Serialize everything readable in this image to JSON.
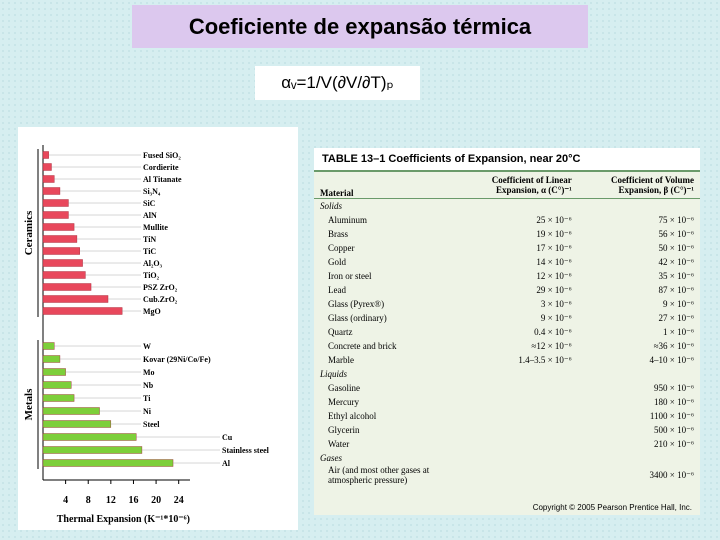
{
  "slide": {
    "title": "Coeficiente de expansão térmica",
    "formula": "αᵥ=1/V(∂V/∂T)ₚ"
  },
  "chart_data": {
    "type": "bar",
    "orientation": "horizontal",
    "x_label": "Thermal Expansion (K⁻¹*10⁻⁶)",
    "xlim": [
      0,
      26
    ],
    "xticks": [
      4,
      8,
      12,
      16,
      20,
      24
    ],
    "groups": [
      {
        "name": "Ceramics",
        "color": "#e8485c",
        "categories": [
          "Fused SiO₂",
          "Cordierite",
          "Al Titanate",
          "Si₃N₄",
          "SiC",
          "AlN",
          "Mullite",
          "TiN",
          "TiC",
          "Al₂O₃",
          "TiO₂",
          "PSZ ZrO₂",
          "Cub.ZrO₂",
          "MgO"
        ],
        "values": [
          1,
          1.5,
          2,
          3,
          4.5,
          4.5,
          5.5,
          6,
          6.5,
          7,
          7.5,
          8.5,
          11.5,
          14
        ]
      },
      {
        "name": "Metals",
        "color": "#7dcf3a",
        "categories": [
          "W",
          "Kovar (29Ni/Co/Fe)",
          "Mo",
          "Nb",
          "Ti",
          "Ni",
          "Steel",
          "Cu",
          "Stainless steel",
          "Al"
        ],
        "values": [
          2,
          3,
          4,
          5,
          5.5,
          10,
          12,
          16.5,
          17.5,
          23
        ]
      }
    ]
  },
  "table": {
    "title": "TABLE 13–1 Coefficients of Expansion, near 20°C",
    "headers": [
      "Material",
      "Coefficient of Linear Expansion, α (C°)⁻¹",
      "Coefficient of Volume Expansion, β (C°)⁻¹"
    ],
    "sections": [
      {
        "name": "Solids",
        "rows": [
          {
            "material": "Aluminum",
            "alpha": "25 × 10⁻⁶",
            "beta": "75 × 10⁻⁶"
          },
          {
            "material": "Brass",
            "alpha": "19 × 10⁻⁶",
            "beta": "56 × 10⁻⁶"
          },
          {
            "material": "Copper",
            "alpha": "17 × 10⁻⁶",
            "beta": "50 × 10⁻⁶"
          },
          {
            "material": "Gold",
            "alpha": "14 × 10⁻⁶",
            "beta": "42 × 10⁻⁶"
          },
          {
            "material": "Iron or steel",
            "alpha": "12 × 10⁻⁶",
            "beta": "35 × 10⁻⁶"
          },
          {
            "material": "Lead",
            "alpha": "29 × 10⁻⁶",
            "beta": "87 × 10⁻⁶"
          },
          {
            "material": "Glass (Pyrex®)",
            "alpha": "3 × 10⁻⁶",
            "beta": "9 × 10⁻⁶"
          },
          {
            "material": "Glass (ordinary)",
            "alpha": "9 × 10⁻⁶",
            "beta": "27 × 10⁻⁶"
          },
          {
            "material": "Quartz",
            "alpha": "0.4 × 10⁻⁶",
            "beta": "1 × 10⁻⁶"
          },
          {
            "material": "Concrete and brick",
            "alpha": "≈12 × 10⁻⁶",
            "beta": "≈36 × 10⁻⁶"
          },
          {
            "material": "Marble",
            "alpha": "1.4–3.5 × 10⁻⁶",
            "beta": "4–10 × 10⁻⁶"
          }
        ]
      },
      {
        "name": "Liquids",
        "rows": [
          {
            "material": "Gasoline",
            "beta": "950 × 10⁻⁶"
          },
          {
            "material": "Mercury",
            "beta": "180 × 10⁻⁶"
          },
          {
            "material": "Ethyl alcohol",
            "beta": "1100 × 10⁻⁶"
          },
          {
            "material": "Glycerin",
            "beta": "500 × 10⁻⁶"
          },
          {
            "material": "Water",
            "beta": "210 × 10⁻⁶"
          }
        ]
      },
      {
        "name": "Gases",
        "rows": [
          {
            "material": "Air (and most other gases at atmospheric pressure)",
            "beta": "3400 × 10⁻⁶"
          }
        ]
      }
    ],
    "footer": "Copyright © 2005 Pearson Prentice Hall, Inc."
  }
}
